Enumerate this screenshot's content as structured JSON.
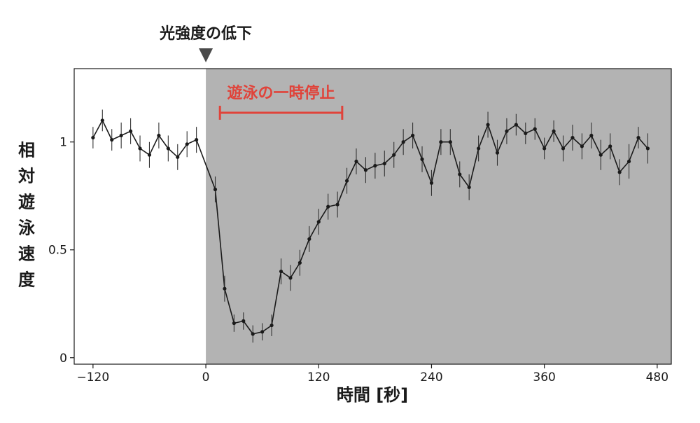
{
  "chart_data": {
    "type": "line",
    "title": "",
    "xlabel": "時間 [秒]",
    "ylabel": "相対遊泳速度",
    "xlim": [
      -140,
      495
    ],
    "ylim": [
      -0.03,
      1.34
    ],
    "x_ticks": [
      -120,
      0,
      120,
      240,
      360,
      480
    ],
    "x_tick_labels": [
      "−120",
      "0",
      "120",
      "240",
      "360",
      "480"
    ],
    "y_ticks": [
      0,
      0.5,
      1
    ],
    "y_tick_labels": [
      "0",
      "0.5",
      "1"
    ],
    "shaded_region": {
      "x_start": 0,
      "x_end": 495,
      "color": "#b3b3b3"
    },
    "annotations": {
      "light_drop": {
        "text": "光強度の低下",
        "x": 0
      },
      "pause": {
        "text": "遊泳の一時停止",
        "x_start": 15,
        "x_end": 145,
        "color": "#e0433a"
      }
    },
    "series": [
      {
        "x": [
          -120,
          -110,
          -100,
          -90,
          -80,
          -70,
          -60,
          -50,
          -40,
          -30,
          -20,
          -10,
          10,
          20,
          30,
          40,
          50,
          60,
          70,
          80,
          90,
          100,
          110,
          120,
          130,
          140,
          150,
          160,
          170,
          180,
          190,
          200,
          210,
          220,
          230,
          240,
          250,
          260,
          270,
          280,
          290,
          300,
          310,
          320,
          330,
          340,
          350,
          360,
          370,
          380,
          390,
          400,
          410,
          420,
          430,
          440,
          450,
          460,
          470
        ],
        "y": [
          1.02,
          1.1,
          1.01,
          1.03,
          1.05,
          0.97,
          0.94,
          1.03,
          0.97,
          0.93,
          0.99,
          1.01,
          0.78,
          0.32,
          0.16,
          0.17,
          0.11,
          0.12,
          0.15,
          0.4,
          0.37,
          0.44,
          0.55,
          0.63,
          0.7,
          0.71,
          0.82,
          0.91,
          0.87,
          0.89,
          0.9,
          0.94,
          1.0,
          1.03,
          0.92,
          0.81,
          1.0,
          1.0,
          0.85,
          0.79,
          0.97,
          1.08,
          0.95,
          1.05,
          1.08,
          1.04,
          1.06,
          0.97,
          1.05,
          0.97,
          1.02,
          0.98,
          1.03,
          0.94,
          0.98,
          0.86,
          0.91,
          1.02,
          0.97
        ],
        "err": [
          0.05,
          0.05,
          0.05,
          0.06,
          0.06,
          0.06,
          0.06,
          0.06,
          0.06,
          0.06,
          0.06,
          0.06,
          0.06,
          0.06,
          0.04,
          0.04,
          0.04,
          0.04,
          0.05,
          0.06,
          0.06,
          0.06,
          0.06,
          0.06,
          0.06,
          0.06,
          0.06,
          0.06,
          0.06,
          0.06,
          0.06,
          0.06,
          0.06,
          0.06,
          0.06,
          0.06,
          0.06,
          0.06,
          0.06,
          0.06,
          0.06,
          0.06,
          0.06,
          0.06,
          0.05,
          0.05,
          0.05,
          0.05,
          0.05,
          0.06,
          0.06,
          0.06,
          0.06,
          0.07,
          0.06,
          0.06,
          0.08,
          0.05,
          0.07
        ],
        "color": "#1a1a1a"
      }
    ]
  }
}
